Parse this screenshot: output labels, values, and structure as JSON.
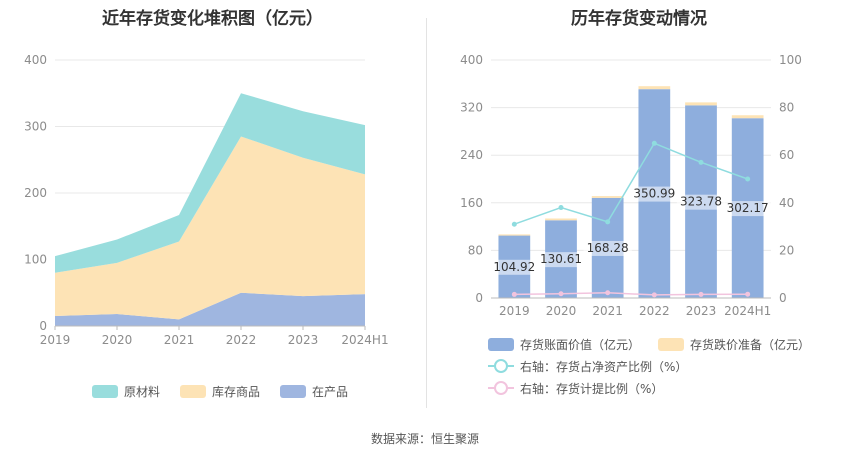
{
  "source_text": "数据来源：恒生聚源",
  "chart_data": [
    {
      "type": "area",
      "title": "近年存货变化堆积图（亿元）",
      "categories": [
        "2019",
        "2020",
        "2021",
        "2022",
        "2023",
        "2024H1"
      ],
      "ylim": [
        0,
        400
      ],
      "yticks": [
        0,
        100,
        200,
        300,
        400
      ],
      "grid": true,
      "legend_position": "bottom",
      "series": [
        {
          "name": "在产品",
          "color": "#9fb6e0",
          "values": [
            15,
            18,
            10,
            50,
            45,
            48
          ]
        },
        {
          "name": "库存商品",
          "color": "#fde3b5",
          "values": [
            65,
            77,
            117,
            235,
            208,
            180
          ]
        },
        {
          "name": "原材料",
          "color": "#99dddd",
          "values": [
            25,
            35,
            40,
            65,
            70,
            74
          ]
        }
      ],
      "legend_order": [
        "原材料",
        "库存商品",
        "在产品"
      ]
    },
    {
      "type": "bar",
      "title": "历年存货变动情况",
      "categories": [
        "2019",
        "2020",
        "2021",
        "2022",
        "2023",
        "2024H1"
      ],
      "ylim": [
        0,
        400
      ],
      "yticks": [
        0,
        80,
        160,
        240,
        320,
        400
      ],
      "y2lim": [
        0,
        100
      ],
      "y2ticks": [
        0,
        20,
        40,
        60,
        80,
        100
      ],
      "grid": true,
      "legend_position": "bottom",
      "series": [
        {
          "name": "存货账面价值（亿元）",
          "type": "bar",
          "color": "#8eaedd",
          "values": [
            104.92,
            130.61,
            168.28,
            350.99,
            323.78,
            302.17
          ],
          "data_labels": [
            "104.92",
            "130.61",
            "168.28",
            "350.99",
            "323.78",
            "302.17"
          ]
        },
        {
          "name": "存货跌价准备（亿元）",
          "type": "bar",
          "color": "#fde3b5",
          "values": [
            2,
            3,
            3,
            5,
            5,
            5
          ]
        },
        {
          "name": "右轴：存货占净资产比例（%）",
          "type": "line",
          "axis": "right",
          "color": "#8fdcdf",
          "values": [
            31,
            38,
            32,
            65,
            57,
            50
          ]
        },
        {
          "name": "右轴：存货计提比例（%）",
          "type": "line",
          "axis": "right",
          "color": "#f2c4de",
          "values": [
            1.5,
            1.8,
            2.2,
            1.3,
            1.5,
            1.6
          ]
        }
      ]
    }
  ]
}
